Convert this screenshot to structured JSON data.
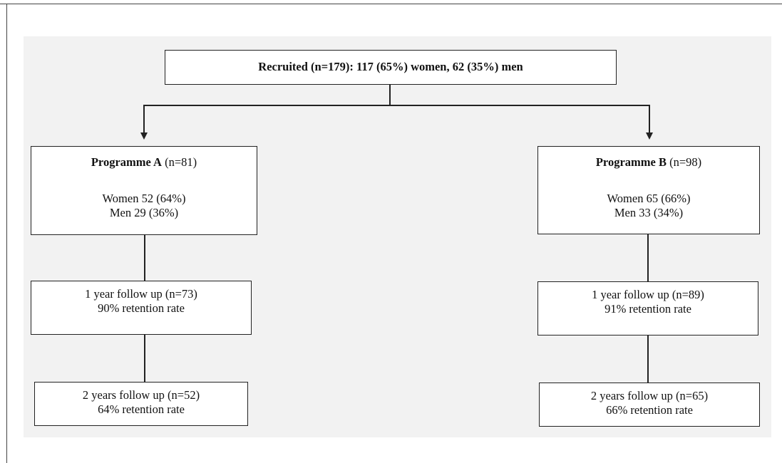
{
  "recruited": {
    "text": "Recruited (n=179): 117 (65%) women, 62 (35%) men"
  },
  "programme_a": {
    "name": "Programme A",
    "n": " (n=81)",
    "women": "Women 52 (64%)",
    "men": "Men 29 (36%)",
    "year1_line1": "1 year follow up (n=73)",
    "year1_line2": "90% retention rate",
    "year2_line1": "2 years follow up (n=52)",
    "year2_line2": "64% retention rate"
  },
  "programme_b": {
    "name": "Programme B",
    "n": " (n=98)",
    "women": "Women 65 (66%)",
    "men": "Men 33 (34%)",
    "year1_line1": "1 year follow up (n=89)",
    "year1_line2": "91% retention rate",
    "year2_line1": "2 years follow up (n=65)",
    "year2_line2": "66% retention rate"
  }
}
